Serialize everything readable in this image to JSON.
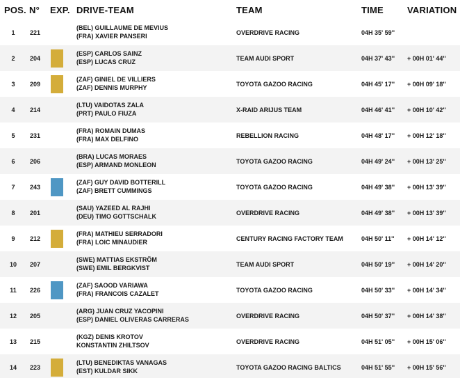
{
  "header": {
    "pos": "POS.",
    "num": "N°",
    "exp": "EXP.",
    "drive_team": "DRIVE-TEAM",
    "team": "TEAM",
    "time": "TIME",
    "variation": "VARIATION"
  },
  "colors": {
    "gold": "#d4ad3a",
    "blue": "#4f97c4",
    "row_alt": "#f3f3f3"
  },
  "rows": [
    {
      "pos": "1",
      "num": "221",
      "exp": "",
      "driver1": "(BEL)  GUILLAUME DE MEVIUS",
      "driver2": "(FRA)  XAVIER PANSERI",
      "team": "OVERDRIVE RACING",
      "time": "04H 35' 59''",
      "variation": ""
    },
    {
      "pos": "2",
      "num": "204",
      "exp": "gold",
      "driver1": "(ESP)  CARLOS SAINZ",
      "driver2": "(ESP)  LUCAS CRUZ",
      "team": "TEAM AUDI SPORT",
      "time": "04H 37' 43''",
      "variation": "+ 00H 01' 44''"
    },
    {
      "pos": "3",
      "num": "209",
      "exp": "gold",
      "driver1": "(ZAF)  GINIEL DE VILLIERS",
      "driver2": "(ZAF)  DENNIS MURPHY",
      "team": "TOYOTA GAZOO RACING",
      "time": "04H 45' 17''",
      "variation": "+ 00H 09' 18''"
    },
    {
      "pos": "4",
      "num": "214",
      "exp": "",
      "driver1": "(LTU)  VAIDOTAS ZALA",
      "driver2": "(PRT)  PAULO FIUZA",
      "team": "X-RAID ARIJUS TEAM",
      "time": "04H 46' 41''",
      "variation": "+ 00H 10' 42''"
    },
    {
      "pos": "5",
      "num": "231",
      "exp": "",
      "driver1": "(FRA)  ROMAIN DUMAS",
      "driver2": "(FRA)  MAX DELFINO",
      "team": "REBELLION RACING",
      "time": "04H 48' 17''",
      "variation": "+ 00H 12' 18''"
    },
    {
      "pos": "6",
      "num": "206",
      "exp": "",
      "driver1": "(BRA)  LUCAS MORAES",
      "driver2": "(ESP)  ARMAND MONLEON",
      "team": "TOYOTA GAZOO RACING",
      "time": "04H 49' 24''",
      "variation": "+ 00H 13' 25''"
    },
    {
      "pos": "7",
      "num": "243",
      "exp": "blue",
      "driver1": "(ZAF)  GUY DAVID BOTTERILL",
      "driver2": "(ZAF)  BRETT CUMMINGS",
      "team": "TOYOTA GAZOO RACING",
      "time": "04H 49' 38''",
      "variation": "+ 00H 13' 39''"
    },
    {
      "pos": "8",
      "num": "201",
      "exp": "",
      "driver1": "(SAU)  YAZEED AL RAJHI",
      "driver2": "(DEU)  TIMO GOTTSCHALK",
      "team": "OVERDRIVE RACING",
      "time": "04H 49' 38''",
      "variation": "+ 00H 13' 39''"
    },
    {
      "pos": "9",
      "num": "212",
      "exp": "gold",
      "driver1": "(FRA)  MATHIEU SERRADORI",
      "driver2": "(FRA)  LOIC MINAUDIER",
      "team": "CENTURY RACING FACTORY TEAM",
      "time": "04H 50' 11''",
      "variation": "+ 00H 14' 12''"
    },
    {
      "pos": "10",
      "num": "207",
      "exp": "",
      "driver1": "(SWE)  MATTIAS EKSTRÖM",
      "driver2": "(SWE)  EMIL BERGKVIST",
      "team": "TEAM AUDI SPORT",
      "time": "04H 50' 19''",
      "variation": "+ 00H 14' 20''"
    },
    {
      "pos": "11",
      "num": "226",
      "exp": "blue",
      "driver1": "(ZAF)  SAOOD VARIAWA",
      "driver2": "(FRA)  FRANCOIS CAZALET",
      "team": "TOYOTA GAZOO RACING",
      "time": "04H 50' 33''",
      "variation": "+ 00H 14' 34''"
    },
    {
      "pos": "12",
      "num": "205",
      "exp": "",
      "driver1": "(ARG)  JUAN CRUZ YACOPINI",
      "driver2": "(ESP)  DANIEL OLIVERAS CARRERAS",
      "team": "OVERDRIVE RACING",
      "time": "04H 50' 37''",
      "variation": "+ 00H 14' 38''"
    },
    {
      "pos": "13",
      "num": "215",
      "exp": "",
      "driver1": "(KGZ)  DENIS KROTOV",
      "driver2": "KONSTANTIN ZHILTSOV",
      "team": "OVERDRIVE RACING",
      "time": "04H 51' 05''",
      "variation": "+ 00H 15' 06''"
    },
    {
      "pos": "14",
      "num": "223",
      "exp": "gold",
      "driver1": "(LTU)  BENEDIKTAS VANAGAS",
      "driver2": "(EST)  KULDAR SIKK",
      "team": "TOYOTA GAZOO RACING BALTICS",
      "time": "04H 51' 55''",
      "variation": "+ 00H 15' 56''"
    }
  ]
}
